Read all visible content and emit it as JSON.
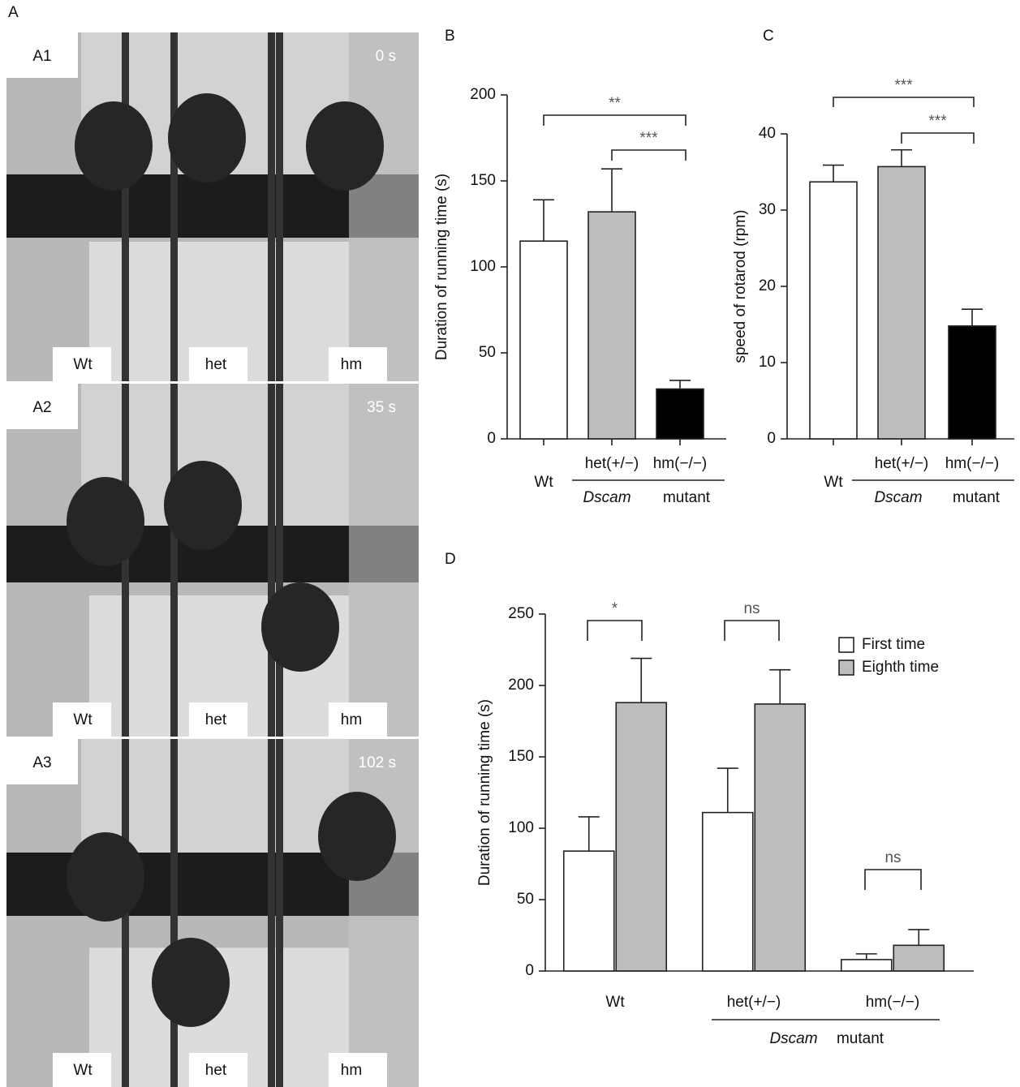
{
  "photo_panel": {
    "letter": "A",
    "frames": [
      {
        "label": "A1",
        "time": "0 s",
        "mice": [
          "Wt",
          "het",
          "hm"
        ]
      },
      {
        "label": "A2",
        "time": "35 s",
        "mice": [
          "Wt",
          "het",
          "hm"
        ]
      },
      {
        "label": "A3",
        "time": "102 s",
        "mice": [
          "Wt",
          "het",
          "hm"
        ]
      }
    ]
  },
  "chart_data": [
    {
      "type": "bar",
      "panel": "B",
      "y_label": "Duration of running time (s)",
      "categories": [
        "Wt",
        "het(+/−)",
        "hm(−/−)"
      ],
      "values": [
        115,
        132,
        29
      ],
      "errors": [
        24,
        25,
        5
      ],
      "colors": [
        "#ffffff",
        "#bdbdbd",
        "#000000"
      ],
      "ylim": [
        0,
        200
      ],
      "yticks": [
        0,
        50,
        100,
        150,
        200
      ],
      "group_label": [
        "Dscam",
        "mutant"
      ],
      "significance": [
        "**",
        "***"
      ]
    },
    {
      "type": "bar",
      "panel": "C",
      "y_label": "speed of rotarod (rpm)",
      "categories": [
        "Wt",
        "het(+/−)",
        "hm(−/−)"
      ],
      "values": [
        33.7,
        35.7,
        14.8
      ],
      "errors": [
        2.2,
        2.2,
        2.2
      ],
      "colors": [
        "#ffffff",
        "#bdbdbd",
        "#000000"
      ],
      "ylim": [
        0,
        40
      ],
      "yticks": [
        0,
        10,
        20,
        30,
        40
      ],
      "group_label": [
        "Dscam",
        "mutant"
      ],
      "significance": [
        "***",
        "***"
      ]
    },
    {
      "type": "grouped-bar",
      "panel": "D",
      "y_label": "Duration of running time (s)",
      "categories": [
        "Wt",
        "het(+/−)",
        "hm(−/−)"
      ],
      "series": [
        {
          "name": "First time",
          "color": "#ffffff",
          "values": [
            84,
            111,
            8
          ],
          "errors": [
            24,
            31,
            4
          ]
        },
        {
          "name": "Eighth time",
          "color": "#bdbdbd",
          "values": [
            188,
            187,
            18
          ],
          "errors": [
            31,
            24,
            11
          ]
        }
      ],
      "ylim": [
        0,
        250
      ],
      "yticks": [
        0,
        50,
        100,
        150,
        200,
        250
      ],
      "group_label": [
        "Dscam",
        "mutant"
      ],
      "significance": [
        "*",
        "ns",
        "ns"
      ],
      "legend": "top-right"
    }
  ]
}
